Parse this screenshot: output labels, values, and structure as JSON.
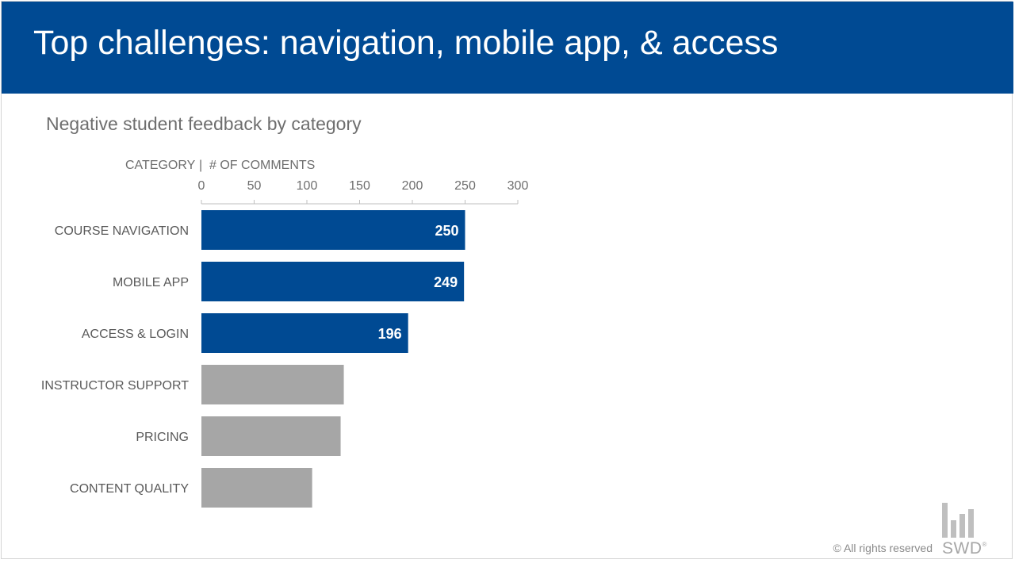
{
  "header": {
    "title": "Top challenges: navigation, mobile app, & access"
  },
  "chart_data": {
    "type": "bar",
    "orientation": "horizontal",
    "title": "Negative student feedback by category",
    "category_header": "CATEGORY",
    "separator": "|",
    "value_header": "# OF COMMENTS",
    "xlim": [
      0,
      300
    ],
    "ticks": [
      0,
      50,
      100,
      150,
      200,
      250,
      300
    ],
    "tick_labels": [
      "0",
      "50",
      "100",
      "150",
      "200",
      "250",
      "300"
    ],
    "categories": [
      "COURSE NAVIGATION",
      "MOBILE APP",
      "ACCESS & LOGIN",
      "INSTRUCTOR SUPPORT",
      "PRICING",
      "CONTENT QUALITY"
    ],
    "values": [
      250,
      249,
      196,
      135,
      132,
      105
    ],
    "labels": [
      "250",
      "249",
      "196",
      "",
      "",
      ""
    ],
    "highlighted": [
      true,
      true,
      true,
      false,
      false,
      false
    ]
  },
  "colors": {
    "header_bg": "#004a93",
    "highlight": "#004a93",
    "muted": "#a6a6a6",
    "label_text": "#595959",
    "tick_text": "#6e6e6e",
    "axis_line": "#bfbfbf"
  },
  "footer": {
    "copyright": "© All rights reserved",
    "logo_text": "SWD",
    "logo_mark": "®"
  }
}
